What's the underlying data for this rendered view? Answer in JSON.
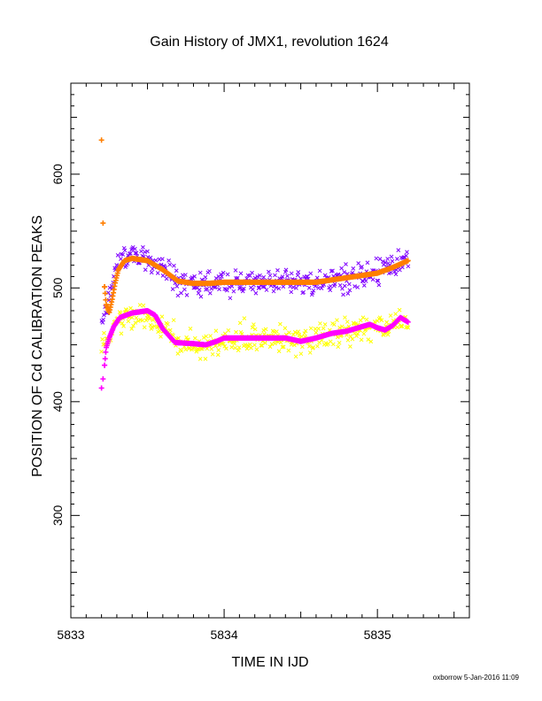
{
  "chart_data": {
    "type": "scatter",
    "title": "Gain History of JMX1, revolution 1624",
    "xlabel": "TIME IN IJD",
    "ylabel": "POSITION OF Cd CALIBRATION PEAKS",
    "xlim": [
      5833,
      5835.6
    ],
    "ylim": [
      210,
      680
    ],
    "xticks": [
      5833,
      5834,
      5835
    ],
    "yticks": [
      300,
      400,
      500,
      600
    ],
    "grid": false,
    "legend": "none",
    "footer": "oxborrow  5-Jan-2016 11:09",
    "series": [
      {
        "color": "#ff7f00",
        "marker": "plus",
        "points": [
          [
            5833.2,
            630
          ],
          [
            5833.21,
            557
          ],
          [
            5833.22,
            501
          ],
          [
            5833.23,
            486
          ],
          [
            5833.25,
            478
          ],
          [
            5833.27,
            490
          ],
          [
            5833.29,
            505
          ],
          [
            5833.31,
            516
          ],
          [
            5833.35,
            524
          ],
          [
            5833.4,
            526
          ],
          [
            5833.5,
            524
          ],
          [
            5833.6,
            516
          ],
          [
            5833.7,
            506
          ],
          [
            5833.8,
            504
          ],
          [
            5833.9,
            504
          ],
          [
            5834.0,
            505
          ],
          [
            5834.2,
            505
          ],
          [
            5834.4,
            505
          ],
          [
            5834.6,
            505
          ],
          [
            5834.7,
            507
          ],
          [
            5834.8,
            509
          ],
          [
            5834.9,
            511
          ],
          [
            5835.0,
            513
          ],
          [
            5835.1,
            518
          ],
          [
            5835.15,
            521
          ],
          [
            5835.2,
            524
          ]
        ]
      },
      {
        "color": "#ff00ff",
        "marker": "plus",
        "points": [
          [
            5833.2,
            412
          ],
          [
            5833.21,
            420
          ],
          [
            5833.22,
            432
          ],
          [
            5833.23,
            447
          ],
          [
            5833.25,
            456
          ],
          [
            5833.28,
            466
          ],
          [
            5833.32,
            474
          ],
          [
            5833.4,
            478
          ],
          [
            5833.5,
            480
          ],
          [
            5833.55,
            476
          ],
          [
            5833.6,
            464
          ],
          [
            5833.68,
            452
          ],
          [
            5833.8,
            451
          ],
          [
            5833.88,
            450
          ],
          [
            5833.95,
            453
          ],
          [
            5834.0,
            456
          ],
          [
            5834.2,
            456
          ],
          [
            5834.4,
            456
          ],
          [
            5834.5,
            453
          ],
          [
            5834.6,
            456
          ],
          [
            5834.7,
            460
          ],
          [
            5834.8,
            462
          ],
          [
            5834.9,
            466
          ],
          [
            5834.95,
            468
          ],
          [
            5835.0,
            465
          ],
          [
            5835.05,
            463
          ],
          [
            5835.1,
            467
          ],
          [
            5835.15,
            474
          ],
          [
            5835.2,
            470
          ]
        ]
      },
      {
        "color": "#7f00ff",
        "marker": "x",
        "center": [
          [
            5833.2,
            462
          ],
          [
            5833.3,
            522
          ],
          [
            5833.4,
            530
          ],
          [
            5833.5,
            523
          ],
          [
            5833.6,
            516
          ],
          [
            5833.7,
            508
          ],
          [
            5833.8,
            503
          ],
          [
            5833.9,
            504
          ],
          [
            5834.0,
            505
          ],
          [
            5834.2,
            505
          ],
          [
            5834.4,
            505
          ],
          [
            5834.6,
            505
          ],
          [
            5834.8,
            510
          ],
          [
            5835.0,
            514
          ],
          [
            5835.2,
            522
          ]
        ],
        "spread": 10,
        "count": 370
      },
      {
        "color": "#ffff00",
        "marker": "x",
        "center": [
          [
            5833.2,
            442
          ],
          [
            5833.3,
            474
          ],
          [
            5833.5,
            475
          ],
          [
            5833.6,
            465
          ],
          [
            5833.7,
            451
          ],
          [
            5833.9,
            450
          ],
          [
            5834.0,
            455
          ],
          [
            5834.4,
            456
          ],
          [
            5834.5,
            453
          ],
          [
            5834.6,
            456
          ],
          [
            5834.8,
            462
          ],
          [
            5835.0,
            466
          ],
          [
            5835.2,
            470
          ]
        ],
        "spread": 11,
        "count": 370
      }
    ]
  }
}
